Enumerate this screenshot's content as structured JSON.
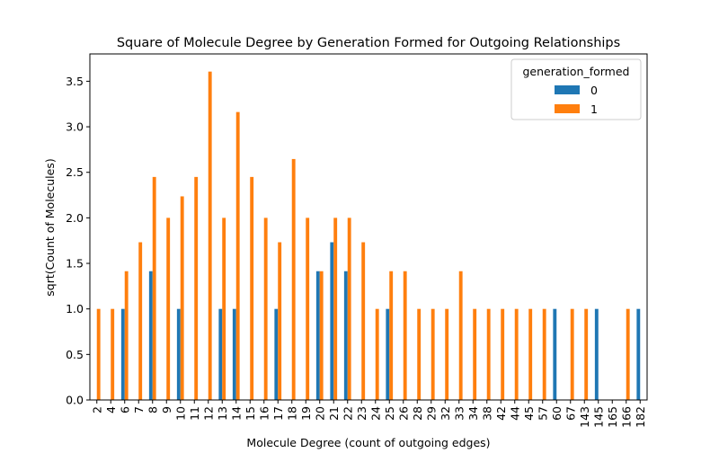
{
  "chart_data": {
    "type": "bar",
    "title": "Square of Molecule Degree by Generation Formed for Outgoing Relationships",
    "xlabel": "Molecule Degree (count of outgoing edges)",
    "ylabel": "sqrt(Count of Molecules)",
    "ylim": [
      0,
      3.8
    ],
    "yticks": [
      "0.0",
      "0.5",
      "1.0",
      "1.5",
      "2.0",
      "2.5",
      "3.0",
      "3.5"
    ],
    "categories": [
      "2",
      "4",
      "6",
      "7",
      "8",
      "9",
      "10",
      "11",
      "12",
      "13",
      "14",
      "15",
      "16",
      "17",
      "18",
      "19",
      "20",
      "21",
      "22",
      "23",
      "24",
      "25",
      "26",
      "28",
      "29",
      "32",
      "33",
      "34",
      "38",
      "42",
      "44",
      "45",
      "57",
      "60",
      "67",
      "143",
      "145",
      "165",
      "166",
      "182"
    ],
    "legend": {
      "title": "generation_formed",
      "position": "top-right"
    },
    "grid": false,
    "series": [
      {
        "name": "0",
        "color": "#1f77b4",
        "values": [
          0,
          0,
          1.0,
          0,
          1.414,
          0,
          1.0,
          0,
          0,
          1.0,
          1.0,
          0,
          0,
          1.0,
          0,
          0,
          1.414,
          1.732,
          1.414,
          0,
          0,
          1.0,
          0,
          0,
          0,
          0,
          0,
          0,
          0,
          0,
          0,
          0,
          0,
          1.0,
          0,
          0,
          1.0,
          0,
          0,
          1.0
        ]
      },
      {
        "name": "1",
        "color": "#ff7f0e",
        "values": [
          1.0,
          1.0,
          1.414,
          1.732,
          2.449,
          2.0,
          2.236,
          2.449,
          3.606,
          2.0,
          3.162,
          2.449,
          2.0,
          1.732,
          2.646,
          2.0,
          1.414,
          2.0,
          2.0,
          1.732,
          1.0,
          1.414,
          1.414,
          1.0,
          1.0,
          1.0,
          1.414,
          1.0,
          1.0,
          1.0,
          1.0,
          1.0,
          1.0,
          0,
          1.0,
          1.0,
          0,
          0,
          1.0,
          0
        ]
      }
    ]
  }
}
